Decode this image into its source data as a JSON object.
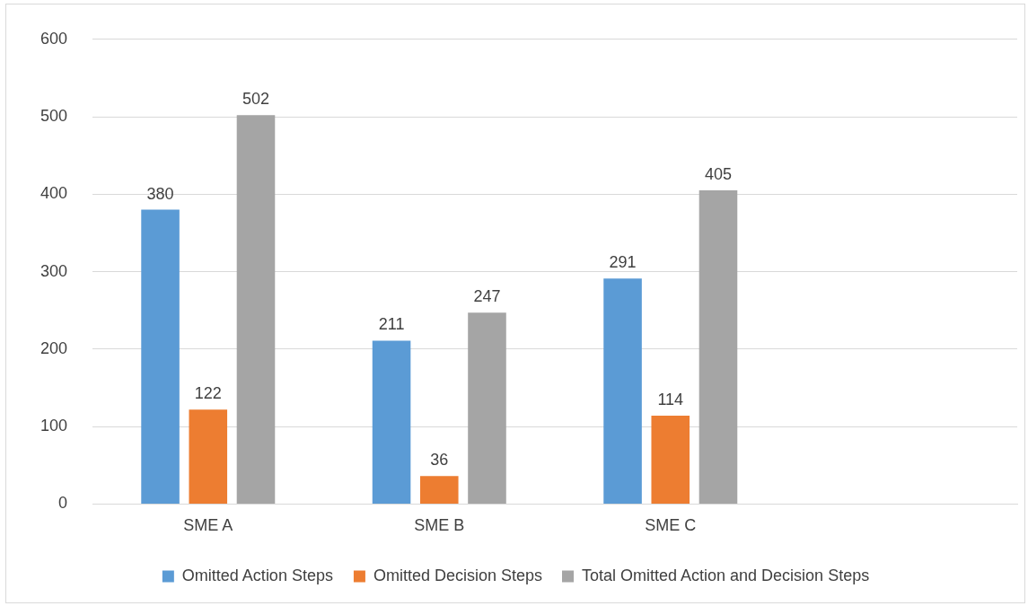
{
  "chart_data": {
    "type": "bar",
    "categories": [
      "SME A",
      "SME B",
      "SME C",
      null
    ],
    "series": [
      {
        "name": "Omitted Action Steps",
        "color": "#5b9bd5",
        "values": [
          380,
          211,
          291,
          null
        ]
      },
      {
        "name": "Omitted Decision Steps",
        "color": "#ed7d31",
        "values": [
          122,
          36,
          114,
          null
        ]
      },
      {
        "name": "Total Omitted Action and Decision Steps",
        "color": "#a5a5a5",
        "values": [
          502,
          247,
          405,
          null
        ]
      }
    ],
    "ylim": [
      0,
      600
    ],
    "yticks": [
      0,
      100,
      200,
      300,
      400,
      500,
      600
    ],
    "grid": "y",
    "legend": "bottom",
    "data_labels": true
  }
}
